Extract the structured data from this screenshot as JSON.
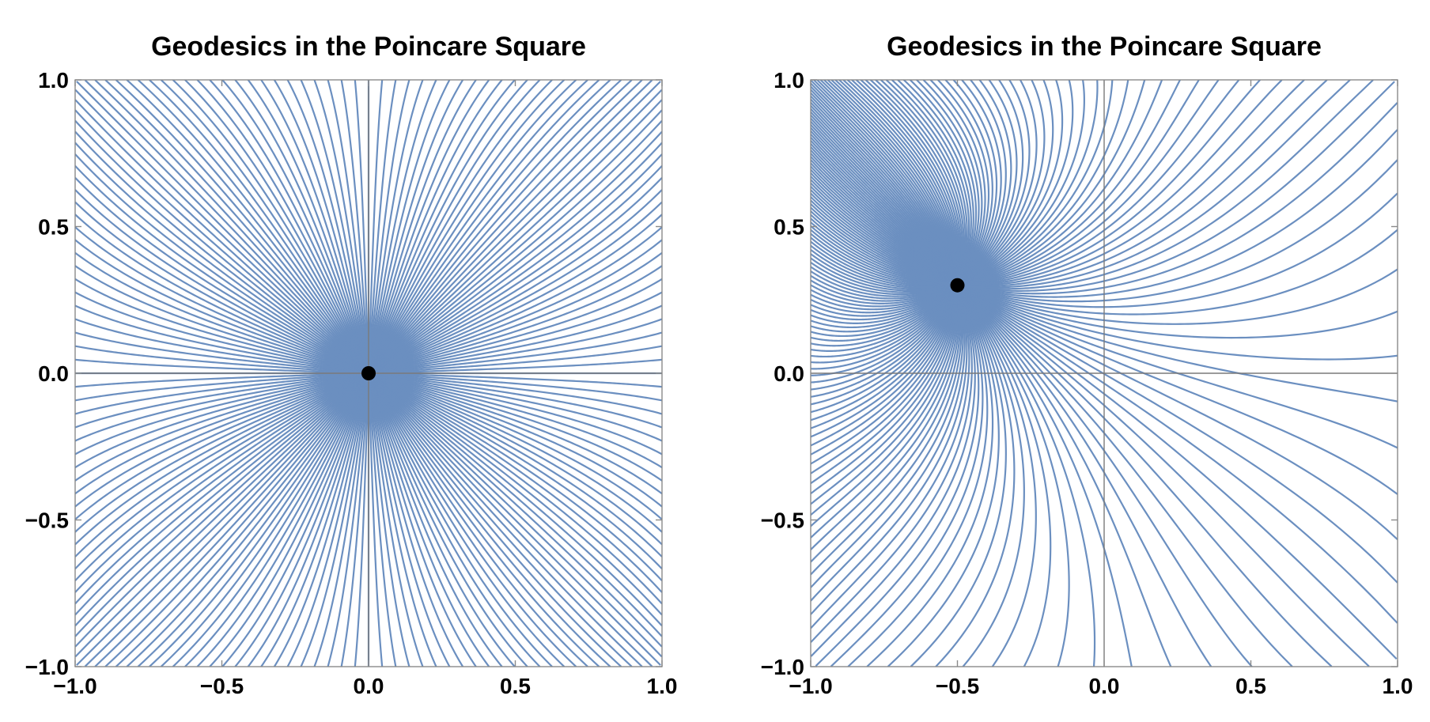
{
  "colors": {
    "curve": "#6b8fc0",
    "axis": "#7a7a7a",
    "frame": "#8a8a8a",
    "point": "#000000",
    "background": "#ffffff"
  },
  "chart_data": [
    {
      "type": "line",
      "title": "Geodesics in the Poincare Square",
      "xlabel": "",
      "ylabel": "",
      "xlim": [
        -1.0,
        1.0
      ],
      "ylim": [
        -1.0,
        1.0
      ],
      "xticks": [
        "−1.0",
        "−0.5",
        "0.0",
        "0.5",
        "1.0"
      ],
      "yticks": [
        "−1.0",
        "−0.5",
        "0.0",
        "0.5",
        "1.0"
      ],
      "axes_lines": {
        "x": 0.0,
        "y": 0.0
      },
      "center_point": {
        "x": 0.0,
        "y": 0.0
      },
      "geodesic_count": 96,
      "grid": false
    },
    {
      "type": "line",
      "title": "Geodesics in the Poincare Square",
      "xlabel": "",
      "ylabel": "",
      "xlim": [
        -1.0,
        1.0
      ],
      "ylim": [
        -1.0,
        1.0
      ],
      "xticks": [
        "−1.0",
        "−0.5",
        "0.0",
        "0.5",
        "1.0"
      ],
      "yticks": [
        "−1.0",
        "−0.5",
        "0.0",
        "0.5",
        "1.0"
      ],
      "axes_lines": {
        "x": 0.0,
        "y": 0.0
      },
      "center_point": {
        "x": -0.5,
        "y": 0.3
      },
      "geodesic_count": 96,
      "grid": false
    }
  ]
}
